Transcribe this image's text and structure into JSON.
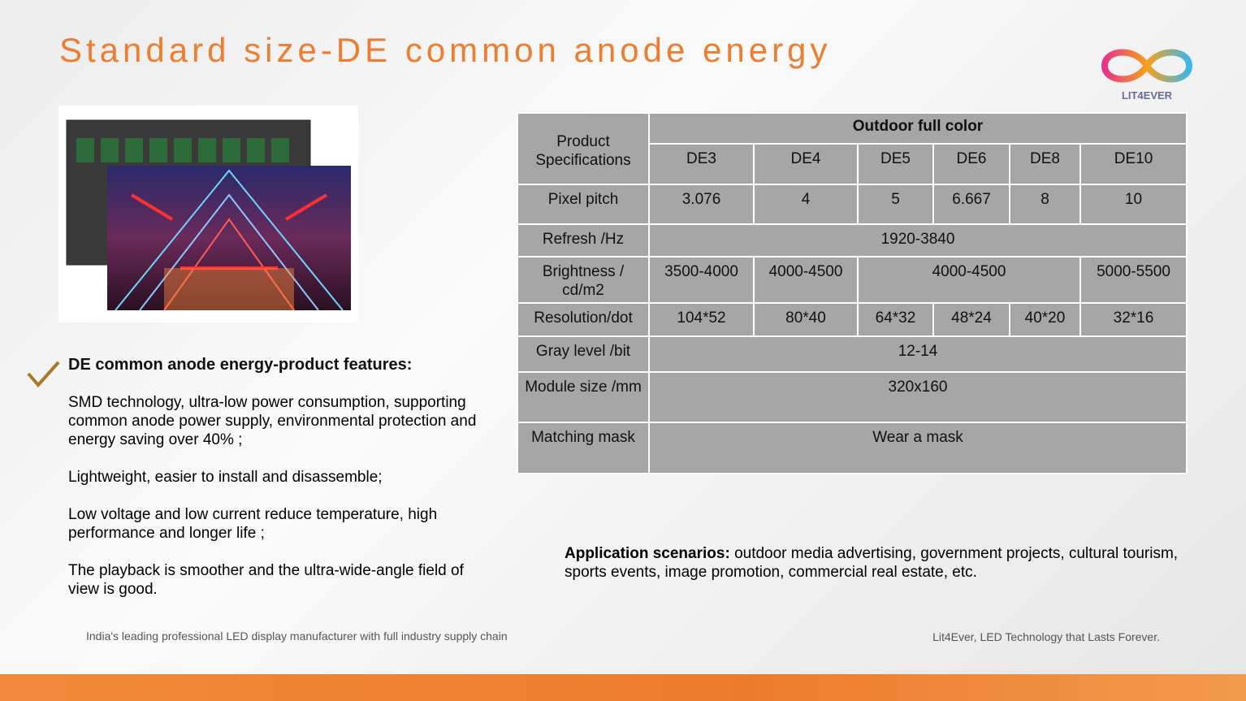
{
  "title": "Standard size-DE common anode energy",
  "logo": {
    "text": "LIT4EVER"
  },
  "features": {
    "heading": "DE common anode energy-product features:",
    "items": [
      "SMD technology, ultra-low power consumption, supporting common anode power supply, environmental protection and energy saving over 40% ;",
      "Lightweight, easier to install and disassemble;",
      "Low voltage and low current reduce temperature, high performance and longer life ;",
      "The playback is smoother and the ultra-wide-angle field of view is good."
    ]
  },
  "table": {
    "corner": "Product Specifications",
    "group": "Outdoor full color",
    "models": [
      "DE3",
      "DE4",
      "DE5",
      "DE6",
      "DE8",
      "DE10"
    ],
    "rows": [
      {
        "label": "Pixel pitch",
        "cells": [
          "3.076",
          "4",
          "5",
          "6.667",
          "8",
          "10"
        ]
      },
      {
        "label": "Refresh /Hz",
        "cells": [
          "1920-3840"
        ]
      },
      {
        "label": "Brightness / cd/m2",
        "cells": [
          "3500-4000",
          "4000-4500",
          "4000-4500",
          "5000-5500"
        ]
      },
      {
        "label": "Resolution/dot",
        "cells": [
          "104*52",
          "80*40",
          "64*32",
          "48*24",
          "40*20",
          "32*16"
        ]
      },
      {
        "label": "Gray level /bit",
        "cells": [
          "12-14"
        ]
      },
      {
        "label": "Module size /mm",
        "cells": [
          "320x160"
        ]
      },
      {
        "label": "Matching mask",
        "cells": [
          "Wear a mask"
        ]
      }
    ]
  },
  "application": {
    "label": "Application scenarios:",
    "text": "outdoor media advertising, government projects, cultural tourism, sports events, image promotion, commercial real estate, etc."
  },
  "footer": {
    "left": "India's leading professional LED display manufacturer with full industry supply chain",
    "right": "Lit4Ever, LED Technology that Lasts Forever."
  }
}
